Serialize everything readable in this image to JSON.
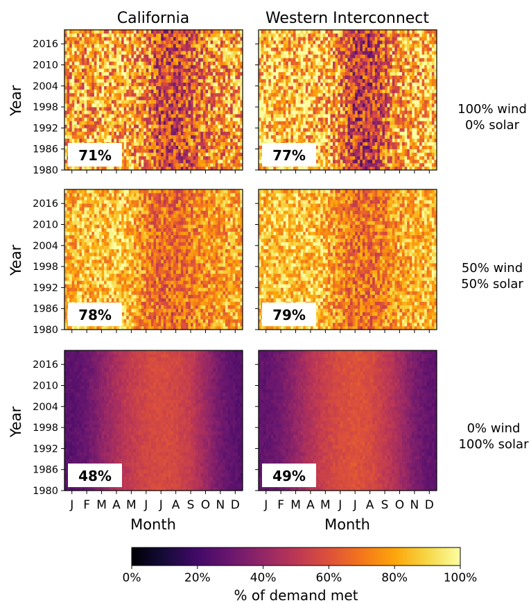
{
  "chart_data": {
    "type": "heatmap",
    "columns": [
      "California",
      "Western Interconnect"
    ],
    "rows": [
      {
        "label": [
          "100% wind",
          "0% solar"
        ],
        "kind": "wind"
      },
      {
        "label": [
          "50% wind",
          "50% solar"
        ],
        "kind": "mix"
      },
      {
        "label": [
          "0% wind",
          "100% solar"
        ],
        "kind": "solar"
      }
    ],
    "ylabel": "Year",
    "xlabel": "Month",
    "year_range": [
      1980,
      2019
    ],
    "ytick_labels": [
      "2016",
      "2010",
      "2004",
      "1998",
      "1992",
      "1986",
      "1980"
    ],
    "month_labels": [
      "J",
      "F",
      "M",
      "A",
      "M",
      "J",
      "J",
      "A",
      "S",
      "O",
      "N",
      "D"
    ],
    "annotations": [
      [
        "71%",
        "77%"
      ],
      [
        "78%",
        "79%"
      ],
      [
        "48%",
        "49%"
      ]
    ],
    "colorbar": {
      "label": "% of demand met",
      "ticks": [
        "0%",
        "20%",
        "40%",
        "60%",
        "80%",
        "100%"
      ],
      "range": [
        0,
        100
      ],
      "colormap": "inferno"
    },
    "monthly_profile_percent": {
      "wind_california": [
        80,
        78,
        80,
        82,
        80,
        72,
        55,
        55,
        62,
        72,
        76,
        78
      ],
      "wind_western": [
        88,
        86,
        86,
        86,
        84,
        72,
        50,
        52,
        64,
        80,
        84,
        86
      ],
      "mix_california": [
        83,
        84,
        86,
        86,
        84,
        72,
        66,
        66,
        70,
        76,
        78,
        80
      ],
      "mix_western": [
        86,
        86,
        86,
        86,
        84,
        74,
        68,
        68,
        72,
        80,
        82,
        84
      ],
      "solar_california": [
        26,
        30,
        38,
        46,
        52,
        56,
        58,
        56,
        52,
        42,
        32,
        26
      ],
      "solar_western": [
        28,
        32,
        40,
        48,
        54,
        58,
        60,
        58,
        52,
        44,
        34,
        28
      ]
    }
  }
}
